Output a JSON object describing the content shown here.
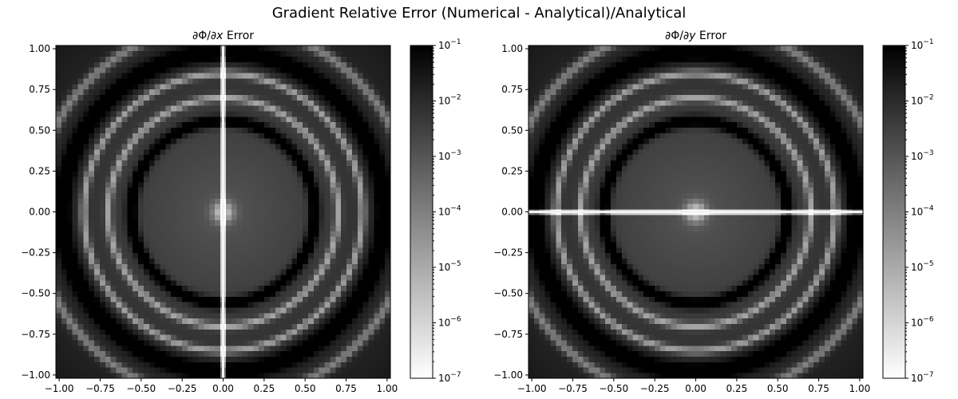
{
  "suptitle": "Gradient Relative Error (Numerical - Analytical)/Analytical",
  "chart_data": [
    {
      "type": "heatmap",
      "title": "∂Φ/∂x Error",
      "title_parts": [
        "∂Φ/∂",
        "x",
        " Error"
      ],
      "xlim": [
        -1.02,
        1.02
      ],
      "ylim": [
        -1.02,
        1.02
      ],
      "xticks": [
        -1.0,
        -0.75,
        -0.5,
        -0.25,
        0.0,
        0.25,
        0.5,
        0.75,
        1.0
      ],
      "xtick_labels": [
        "−1.00",
        "−0.75",
        "−0.50",
        "−0.25",
        "0.00",
        "0.25",
        "0.50",
        "0.75",
        "1.00"
      ],
      "yticks": [
        1.0,
        0.75,
        0.5,
        0.25,
        0.0,
        -0.25,
        -0.5,
        -0.75,
        -1.0
      ],
      "ytick_labels": [
        "1.00",
        "0.75",
        "0.50",
        "0.25",
        "0.00",
        "−0.25",
        "−0.50",
        "−0.75",
        "−1.00"
      ],
      "grid_cells": 61,
      "singular_axis": "x",
      "colormap": "gray_r",
      "colorbar": {
        "scale": "log",
        "range": [
          1e-07,
          0.1
        ],
        "tick_labels": [
          {
            "base": "10",
            "exp": "−1"
          },
          {
            "base": "10",
            "exp": "−2"
          },
          {
            "base": "10",
            "exp": "−3"
          },
          {
            "base": "10",
            "exp": "−4"
          },
          {
            "base": "10",
            "exp": "−5"
          },
          {
            "base": "10",
            "exp": "−6"
          },
          {
            "base": "10",
            "exp": "−7"
          }
        ]
      }
    },
    {
      "type": "heatmap",
      "title": "∂Φ/∂y Error",
      "title_parts": [
        "∂Φ/∂",
        "y",
        " Error"
      ],
      "xlim": [
        -1.02,
        1.02
      ],
      "ylim": [
        -1.02,
        1.02
      ],
      "xticks": [
        -1.0,
        -0.75,
        -0.5,
        -0.25,
        0.0,
        0.25,
        0.5,
        0.75,
        1.0
      ],
      "xtick_labels": [
        "−1.00",
        "−0.75",
        "−0.50",
        "−0.25",
        "0.00",
        "0.25",
        "0.50",
        "0.75",
        "1.00"
      ],
      "yticks": [
        1.0,
        0.75,
        0.5,
        0.25,
        0.0,
        -0.25,
        -0.5,
        -0.75,
        -1.0
      ],
      "ytick_labels": [
        "1.00",
        "0.75",
        "0.50",
        "0.25",
        "0.00",
        "−0.25",
        "−0.50",
        "−0.75",
        "−1.00"
      ],
      "grid_cells": 61,
      "singular_axis": "y",
      "colormap": "gray_r",
      "colorbar": {
        "scale": "log",
        "range": [
          1e-07,
          0.1
        ],
        "tick_labels": [
          {
            "base": "10",
            "exp": "−1"
          },
          {
            "base": "10",
            "exp": "−2"
          },
          {
            "base": "10",
            "exp": "−3"
          },
          {
            "base": "10",
            "exp": "−4"
          },
          {
            "base": "10",
            "exp": "−5"
          },
          {
            "base": "10",
            "exp": "−6"
          },
          {
            "base": "10",
            "exp": "−7"
          }
        ]
      }
    }
  ]
}
